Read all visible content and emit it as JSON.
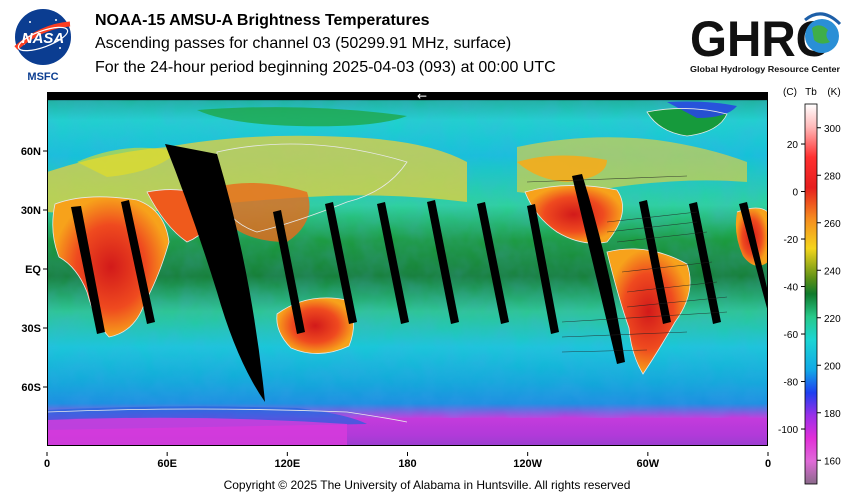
{
  "header": {
    "line1": "NOAA-15 AMSU-A Brightness Temperatures",
    "line2": "Ascending passes for channel 03 (50299.91 MHz, surface)",
    "line3": "For the 24-hour period beginning 2025-04-03 (093) at 00:00 UTC"
  },
  "nasa_logo": {
    "wordmark": "NASA",
    "center": "MSFC"
  },
  "ghrc_logo": {
    "wordmark": "GHRC",
    "tagline": "Global Hydrology Resource Center"
  },
  "map": {
    "x_ticks": [
      "0",
      "60E",
      "120E",
      "180",
      "120W",
      "60W",
      "0"
    ],
    "y_ticks": [
      "60N",
      "30N",
      "EQ",
      "30S",
      "60S"
    ],
    "direction_arrow": "←"
  },
  "colorbar": {
    "header_celsius": "(C)",
    "header_tb": "Tb",
    "header_kelvin": "(K)",
    "celsius_ticks": [
      "20",
      "0",
      "-20",
      "-40",
      "-60",
      "-80",
      "-100"
    ],
    "kelvin_ticks": [
      "300",
      "280",
      "260",
      "240",
      "220",
      "200",
      "180",
      "160"
    ],
    "range_k": [
      150,
      310
    ]
  },
  "footer": {
    "copyright": "Copyright © 2025 The University of Alabama in Huntsville.  All rights reserved"
  }
}
